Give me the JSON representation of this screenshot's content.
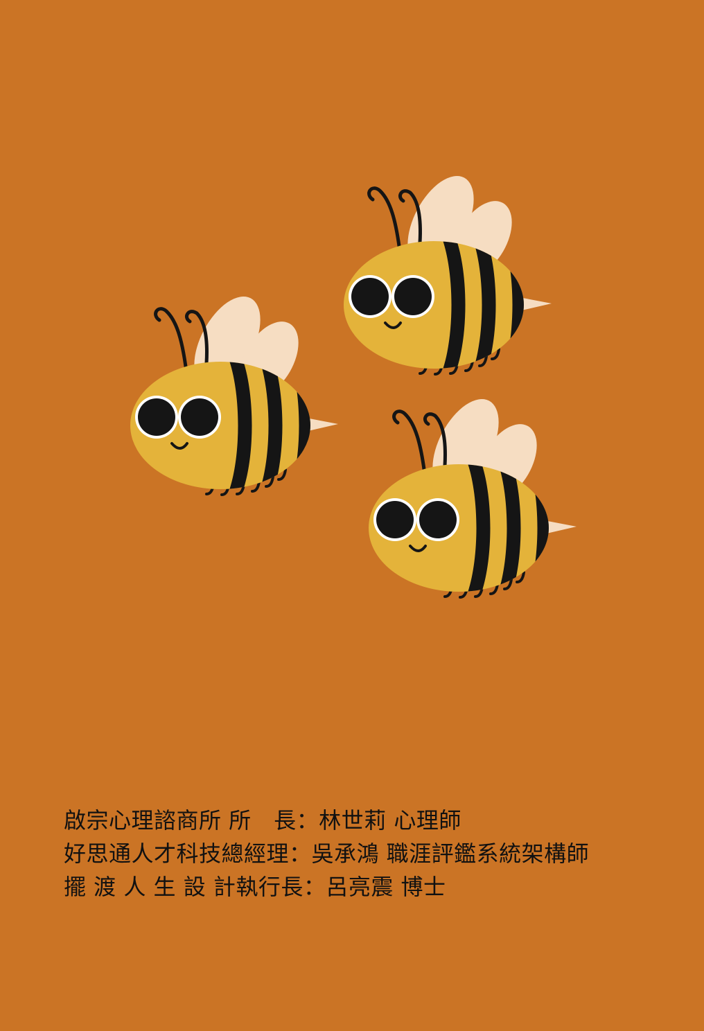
{
  "colors": {
    "background": "#CB7425",
    "bee_body": "#E4B33A",
    "bee_stripe": "#151515",
    "bee_wing": "#F6DDC2",
    "bee_eye_ring": "#FFFFFF",
    "text": "#111111"
  },
  "illustration": {
    "bees": [
      {
        "name": "bee-top-right",
        "icon": "bee-icon"
      },
      {
        "name": "bee-left",
        "icon": "bee-icon"
      },
      {
        "name": "bee-bottom-right",
        "icon": "bee-icon"
      }
    ]
  },
  "credits": {
    "lines": [
      "啟宗心理諮商所 所　長：林世莉 心理師",
      "好思通人才科技總經理：吳承鴻 職涯評鑑系統架構師",
      "擺 渡 人 生 設 計執行長：呂亮震 博士"
    ]
  }
}
